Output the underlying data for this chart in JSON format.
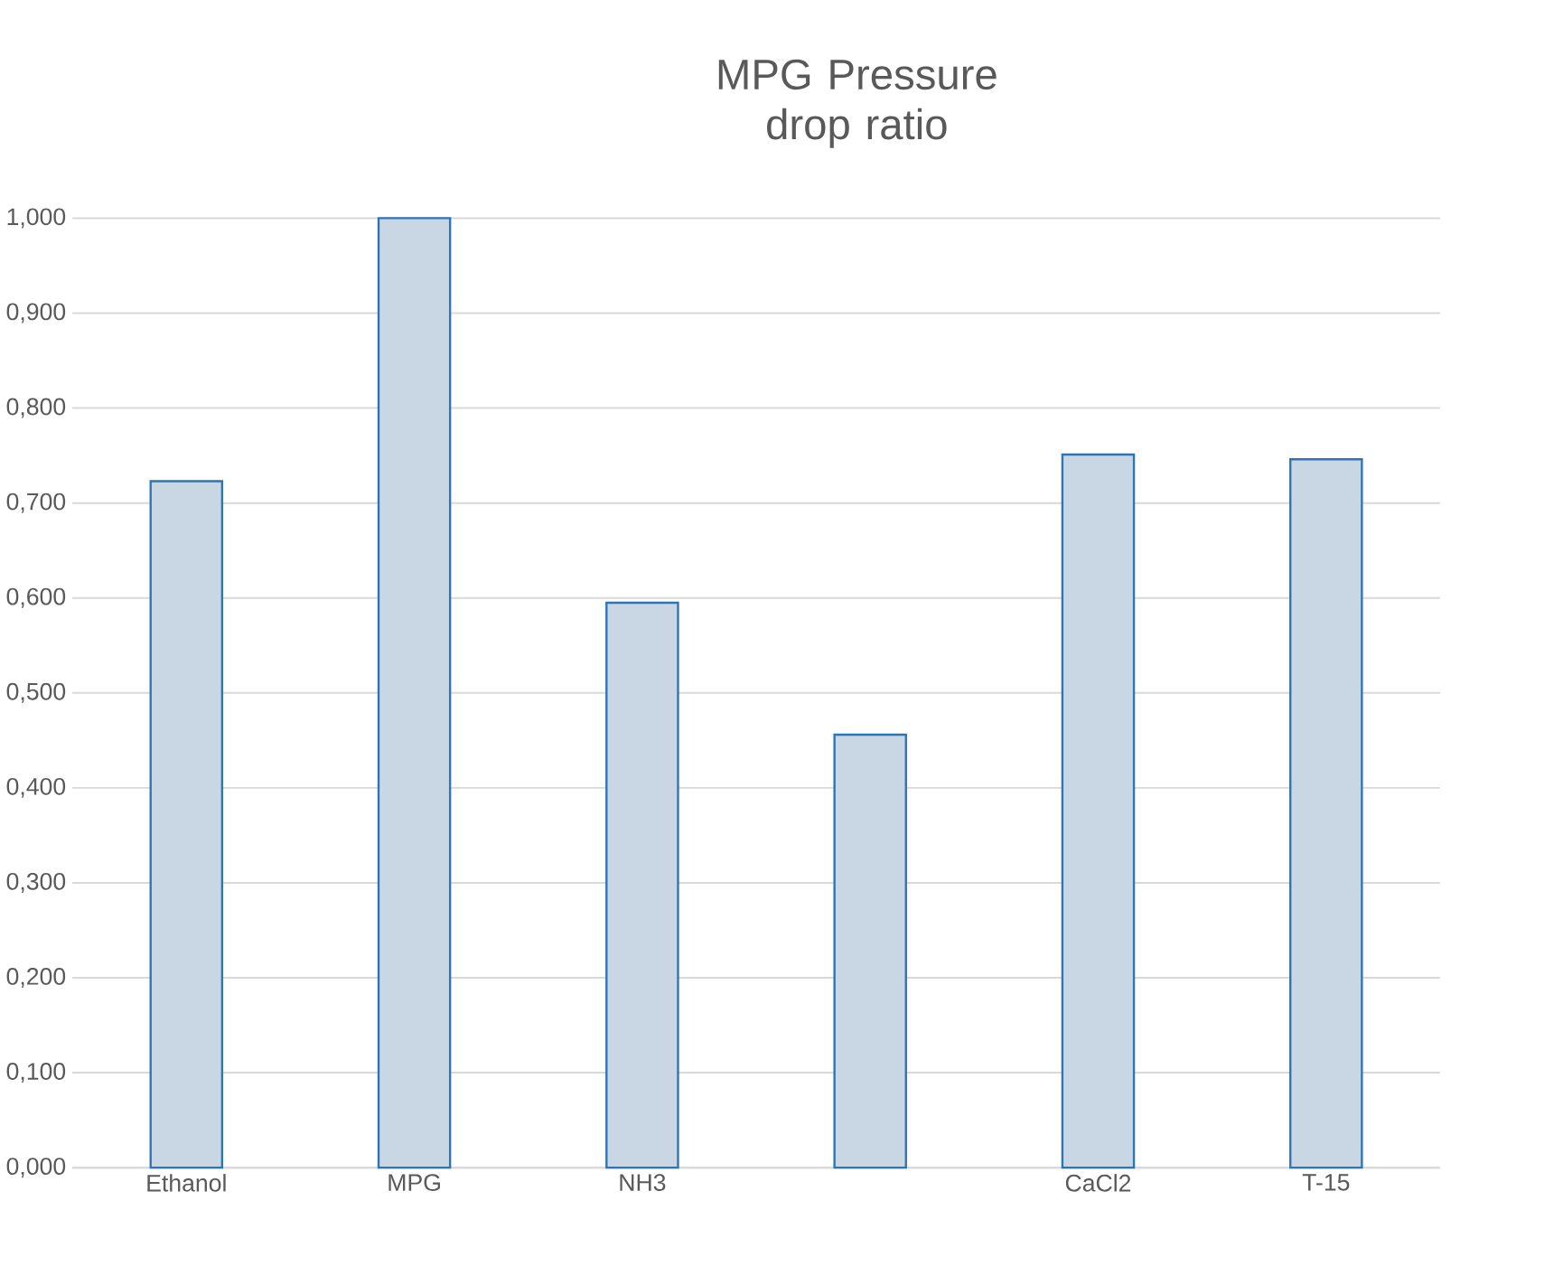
{
  "chart_data": {
    "type": "bar",
    "title": "MPG Pressure drop ratio",
    "categories": [
      "Ethanol",
      "MPG",
      "NH3",
      null,
      "CaCl2",
      "T-15"
    ],
    "values": [
      0.723,
      1.0,
      0.595,
      0.456,
      0.751,
      0.746
    ],
    "color": "#c9d6e4",
    "ylim": [
      0,
      1
    ],
    "yticks": [
      {
        "value": 0,
        "label": "0,000"
      },
      {
        "value": 0.1,
        "label": "0,100"
      },
      {
        "value": 0.2,
        "label": "0,200"
      },
      {
        "value": 0.3,
        "label": "0,300"
      },
      {
        "value": 0.4,
        "label": "0,400"
      },
      {
        "value": 0.5,
        "label": "0,500"
      },
      {
        "value": 0.6,
        "label": "0,600"
      },
      {
        "value": 0.7,
        "label": "0,700"
      },
      {
        "value": 0.8,
        "label": "0,800"
      },
      {
        "value": 0.9,
        "label": "0,900"
      },
      {
        "value": 1,
        "label": "1,000"
      }
    ],
    "grid": true
  }
}
